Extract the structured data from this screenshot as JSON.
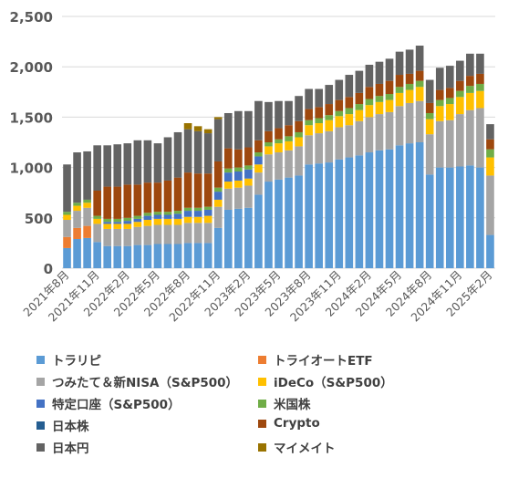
{
  "chart_data": {
    "type": "bar",
    "stacked": true,
    "ylim": [
      0,
      2500
    ],
    "yticks": [
      0,
      500,
      1000,
      1500,
      2000,
      2500
    ],
    "ytick_labels": [
      "0",
      "500",
      "1,000",
      "1,500",
      "2,000",
      "2,500"
    ],
    "grid": true,
    "legend_position": "bottom",
    "categories": [
      "2021年8月",
      "2021年9月",
      "2021年10月",
      "2021年11月",
      "2021年12月",
      "2022年1月",
      "2022年2月",
      "2022年3月",
      "2022年4月",
      "2022年5月",
      "2022年6月",
      "2022年7月",
      "2022年8月",
      "2022年9月",
      "2022年10月",
      "2022年11月",
      "2022年12月",
      "2023年1月",
      "2023年2月",
      "2023年3月",
      "2023年4月",
      "2023年5月",
      "2023年6月",
      "2023年7月",
      "2023年8月",
      "2023年9月",
      "2023年10月",
      "2023年11月",
      "2023年12月",
      "2024年1月",
      "2024年2月",
      "2024年3月",
      "2024年4月",
      "2024年5月",
      "2024年6月",
      "2024年7月",
      "2024年8月",
      "2024年9月",
      "2024年10月",
      "2024年11月",
      "2024年12月",
      "2025年1月",
      "2025年2月"
    ],
    "xtick_labels": [
      "2021年8月",
      "2021年11月",
      "2022年2月",
      "2022年5月",
      "2022年8月",
      "2022年11月",
      "2023年2月",
      "2023年5月",
      "2023年8月",
      "2023年11月",
      "2024年2月",
      "2024年5月",
      "2024年8月",
      "2024年11月",
      "2025年2月"
    ],
    "series": [
      {
        "name": "トラリピ",
        "color": "#5b9bd5",
        "values": [
          200,
          290,
          300,
          260,
          220,
          220,
          220,
          230,
          230,
          240,
          240,
          240,
          250,
          250,
          250,
          400,
          580,
          590,
          600,
          730,
          860,
          880,
          900,
          920,
          1030,
          1040,
          1050,
          1080,
          1100,
          1120,
          1150,
          1170,
          1180,
          1220,
          1240,
          1250,
          930,
          1000,
          1000,
          1010,
          1020,
          1000,
          330
        ]
      },
      {
        "name": "トライオートETF",
        "color": "#ed7d31",
        "values": [
          110,
          110,
          120,
          0,
          0,
          0,
          0,
          0,
          0,
          0,
          0,
          0,
          0,
          0,
          0,
          0,
          0,
          0,
          0,
          0,
          0,
          0,
          0,
          0,
          0,
          0,
          0,
          0,
          0,
          0,
          0,
          0,
          0,
          0,
          0,
          0,
          0,
          0,
          0,
          0,
          0,
          0,
          0
        ]
      },
      {
        "name": "つみたて＆新NISA（S&P500）",
        "color": "#a5a5a5",
        "values": [
          170,
          170,
          180,
          180,
          170,
          170,
          170,
          180,
          190,
          190,
          190,
          190,
          200,
          200,
          200,
          210,
          210,
          210,
          220,
          220,
          270,
          270,
          270,
          290,
          290,
          300,
          310,
          320,
          320,
          340,
          350,
          360,
          370,
          390,
          400,
          410,
          400,
          460,
          470,
          520,
          550,
          590,
          590
        ]
      },
      {
        "name": "iDeCo（S&P500）",
        "color": "#ffc000",
        "values": [
          50,
          50,
          50,
          50,
          50,
          50,
          50,
          50,
          60,
          60,
          60,
          60,
          60,
          60,
          70,
          70,
          70,
          70,
          70,
          80,
          80,
          90,
          90,
          90,
          100,
          100,
          110,
          110,
          110,
          110,
          120,
          120,
          120,
          130,
          130,
          140,
          150,
          150,
          160,
          170,
          170,
          170,
          180
        ]
      },
      {
        "name": "特定口座（S&P500）",
        "color": "#4472c4",
        "values": [
          0,
          0,
          0,
          0,
          20,
          20,
          30,
          30,
          40,
          40,
          40,
          50,
          60,
          60,
          60,
          80,
          90,
          90,
          90,
          80,
          0,
          0,
          0,
          0,
          0,
          0,
          0,
          0,
          0,
          0,
          0,
          0,
          0,
          0,
          0,
          0,
          0,
          0,
          0,
          0,
          0,
          0,
          0
        ]
      },
      {
        "name": "米国株",
        "color": "#70ad47",
        "values": [
          30,
          30,
          30,
          30,
          30,
          30,
          30,
          30,
          30,
          30,
          30,
          30,
          30,
          30,
          30,
          40,
          40,
          40,
          40,
          40,
          40,
          40,
          50,
          50,
          50,
          50,
          50,
          50,
          60,
          60,
          60,
          60,
          60,
          60,
          60,
          60,
          60,
          60,
          60,
          60,
          70,
          70,
          80
        ]
      },
      {
        "name": "日本株",
        "color": "#255e91",
        "values": [
          0,
          0,
          0,
          0,
          0,
          0,
          0,
          0,
          0,
          0,
          0,
          0,
          0,
          0,
          0,
          0,
          0,
          0,
          0,
          0,
          0,
          0,
          0,
          0,
          0,
          0,
          0,
          0,
          0,
          0,
          0,
          0,
          0,
          0,
          0,
          0,
          0,
          0,
          0,
          0,
          0,
          0,
          0
        ]
      },
      {
        "name": "Crypto",
        "color": "#9e480e",
        "values": [
          0,
          0,
          0,
          250,
          320,
          320,
          330,
          310,
          300,
          290,
          310,
          330,
          350,
          340,
          330,
          260,
          200,
          180,
          180,
          120,
          110,
          110,
          110,
          110,
          110,
          110,
          110,
          110,
          110,
          110,
          120,
          120,
          130,
          120,
          100,
          100,
          100,
          100,
          100,
          100,
          100,
          100,
          100
        ]
      },
      {
        "name": "日本円",
        "color": "#636363",
        "values": [
          470,
          500,
          480,
          450,
          410,
          420,
          410,
          440,
          420,
          390,
          430,
          450,
          430,
          420,
          400,
          420,
          350,
          380,
          360,
          390,
          290,
          270,
          240,
          250,
          200,
          180,
          190,
          200,
          220,
          220,
          220,
          220,
          220,
          230,
          240,
          250,
          230,
          220,
          220,
          200,
          220,
          200,
          150
        ]
      },
      {
        "name": "マイメイト",
        "color": "#997300",
        "values": [
          0,
          0,
          0,
          0,
          0,
          0,
          0,
          0,
          0,
          0,
          0,
          0,
          60,
          50,
          40,
          20,
          0,
          0,
          0,
          0,
          0,
          0,
          0,
          0,
          0,
          0,
          0,
          0,
          0,
          0,
          0,
          0,
          0,
          0,
          0,
          0,
          0,
          0,
          0,
          0,
          0,
          0,
          0
        ]
      }
    ]
  }
}
